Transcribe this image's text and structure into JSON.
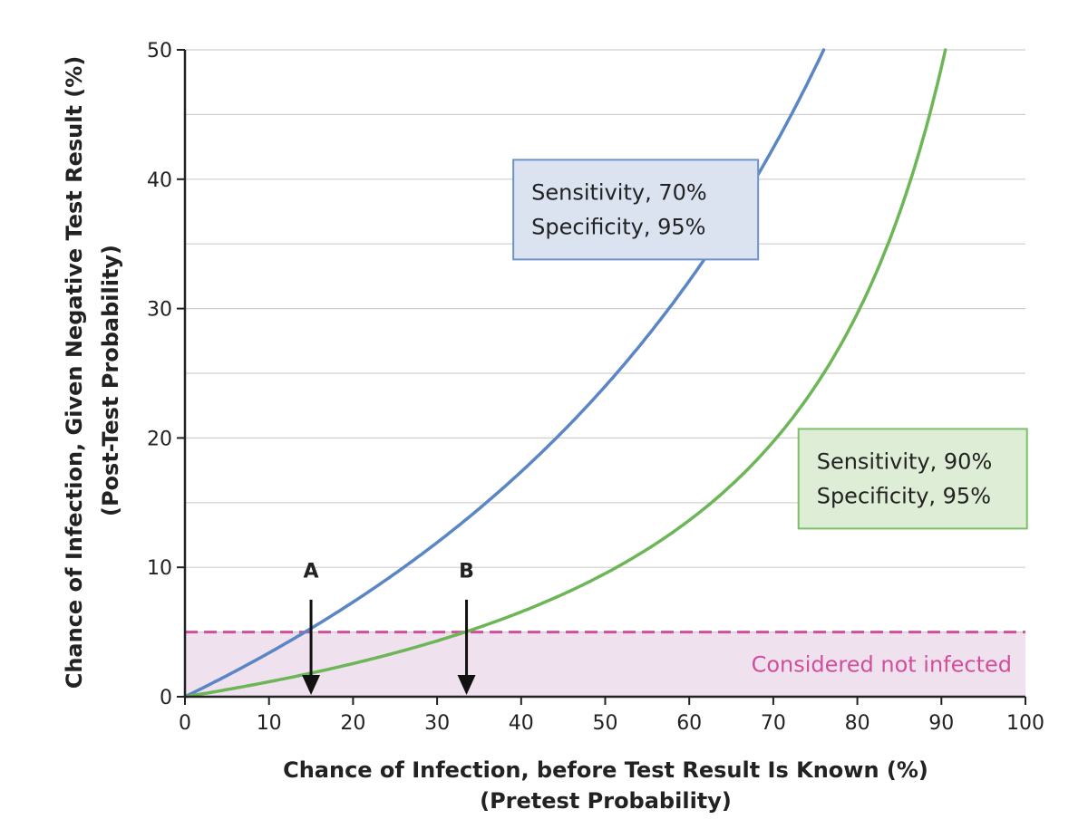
{
  "chart_data": {
    "type": "line",
    "xlabel": "Chance of Infection, before Test Result Is Known (%)",
    "xlabel_sub": "(Pretest Probability)",
    "ylabel": "Chance of Infection, Given Negative Test Result (%)",
    "ylabel_sub": "(Post-Test Probability)",
    "xlim": [
      0,
      100
    ],
    "ylim": [
      0,
      50
    ],
    "x_ticks": [
      0,
      10,
      20,
      30,
      40,
      50,
      60,
      70,
      80,
      90,
      100
    ],
    "y_ticks": [
      0,
      10,
      20,
      30,
      40,
      50
    ],
    "grid": "horizontal",
    "series": [
      {
        "name": "Sensitivity 70%, Specificity 95%",
        "sensitivity": 0.7,
        "specificity": 0.95,
        "color": "#5b86c5",
        "label_lines": [
          "Sensitivity, 70%",
          "Specificity, 95%"
        ],
        "box_fill": "#dbe3f1",
        "box_stroke": "#6f93c9",
        "x": [
          0,
          5,
          10,
          15,
          20,
          25,
          30,
          35,
          40,
          45,
          50,
          55,
          60,
          65,
          70,
          75,
          76.5
        ],
        "y": [
          0,
          1.6,
          3.4,
          5.3,
          7.3,
          9.5,
          11.9,
          14.6,
          17.4,
          20.5,
          24.0,
          27.8,
          31.6,
          36.1,
          41.2,
          47.0,
          50.0
        ]
      },
      {
        "name": "Sensitivity 90%, Specificity 95%",
        "sensitivity": 0.9,
        "specificity": 0.95,
        "color": "#6db657",
        "label_lines": [
          "Sensitivity, 90%",
          "Specificity, 95%"
        ],
        "box_fill": "#deedd6",
        "box_stroke": "#7dbf69",
        "x": [
          0,
          10,
          20,
          30,
          33.5,
          40,
          50,
          60,
          70,
          80,
          85,
          90,
          90.9
        ],
        "y": [
          0,
          1.2,
          2.6,
          4.3,
          5.0,
          6.6,
          9.5,
          13.6,
          19.7,
          29.6,
          37.4,
          48.6,
          50.0
        ]
      }
    ],
    "threshold": {
      "y": 5,
      "label": "Considered not infected",
      "color": "#d04f9b",
      "fill": "#efe1ee"
    },
    "annotations": [
      {
        "label": "A",
        "x": 15
      },
      {
        "label": "B",
        "x": 33.5
      }
    ]
  }
}
